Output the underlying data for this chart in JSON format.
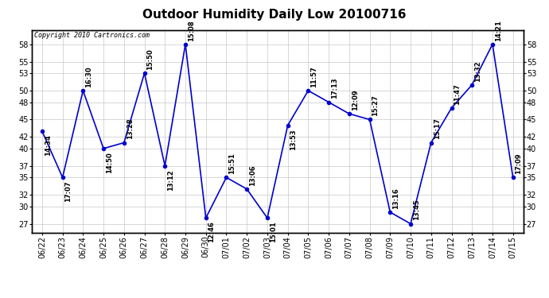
{
  "title": "Outdoor Humidity Daily Low 20100716",
  "copyright": "Copyright 2010 Cartronics.com",
  "background_color": "#ffffff",
  "line_color": "#0000cc",
  "marker_color": "#0000cc",
  "grid_color": "#c8c8c8",
  "yticks": [
    27,
    30,
    32,
    35,
    37,
    40,
    42,
    45,
    48,
    50,
    53,
    55,
    58
  ],
  "ylim": [
    25.5,
    60.5
  ],
  "points": [
    {
      "date": "06/22",
      "time": "14:34",
      "value": 43
    },
    {
      "date": "06/23",
      "time": "17:07",
      "value": 35
    },
    {
      "date": "06/24",
      "time": "16:30",
      "value": 50
    },
    {
      "date": "06/25",
      "time": "14:50",
      "value": 40
    },
    {
      "date": "06/26",
      "time": "13:28",
      "value": 41
    },
    {
      "date": "06/27",
      "time": "15:50",
      "value": 53
    },
    {
      "date": "06/28",
      "time": "13:12",
      "value": 37
    },
    {
      "date": "06/29",
      "time": "15:08",
      "value": 58
    },
    {
      "date": "06/30",
      "time": "12:46",
      "value": 28
    },
    {
      "date": "07/01",
      "time": "15:51",
      "value": 35
    },
    {
      "date": "07/02",
      "time": "13:06",
      "value": 33
    },
    {
      "date": "07/03",
      "time": "15:01",
      "value": 28
    },
    {
      "date": "07/04",
      "time": "13:53",
      "value": 44
    },
    {
      "date": "07/05",
      "time": "11:57",
      "value": 50
    },
    {
      "date": "07/06",
      "time": "17:13",
      "value": 48
    },
    {
      "date": "07/07",
      "time": "12:09",
      "value": 46
    },
    {
      "date": "07/08",
      "time": "15:27",
      "value": 45
    },
    {
      "date": "07/09",
      "time": "13:16",
      "value": 29
    },
    {
      "date": "07/10",
      "time": "13:45",
      "value": 27
    },
    {
      "date": "07/11",
      "time": "15:17",
      "value": 41
    },
    {
      "date": "07/12",
      "time": "11:47",
      "value": 47
    },
    {
      "date": "07/13",
      "time": "13:32",
      "value": 51
    },
    {
      "date": "07/14",
      "time": "14:21",
      "value": 58
    },
    {
      "date": "07/15",
      "time": "17:09",
      "value": 35
    }
  ],
  "label_above": {
    "06/22": false,
    "06/23": false,
    "06/24": true,
    "06/25": false,
    "06/26": true,
    "06/27": true,
    "06/28": false,
    "06/29": true,
    "06/30": false,
    "07/01": true,
    "07/02": true,
    "07/03": false,
    "07/04": false,
    "07/05": true,
    "07/06": true,
    "07/07": true,
    "07/08": true,
    "07/09": true,
    "07/10": true,
    "07/11": true,
    "07/12": true,
    "07/13": true,
    "07/14": true,
    "07/15": true
  }
}
